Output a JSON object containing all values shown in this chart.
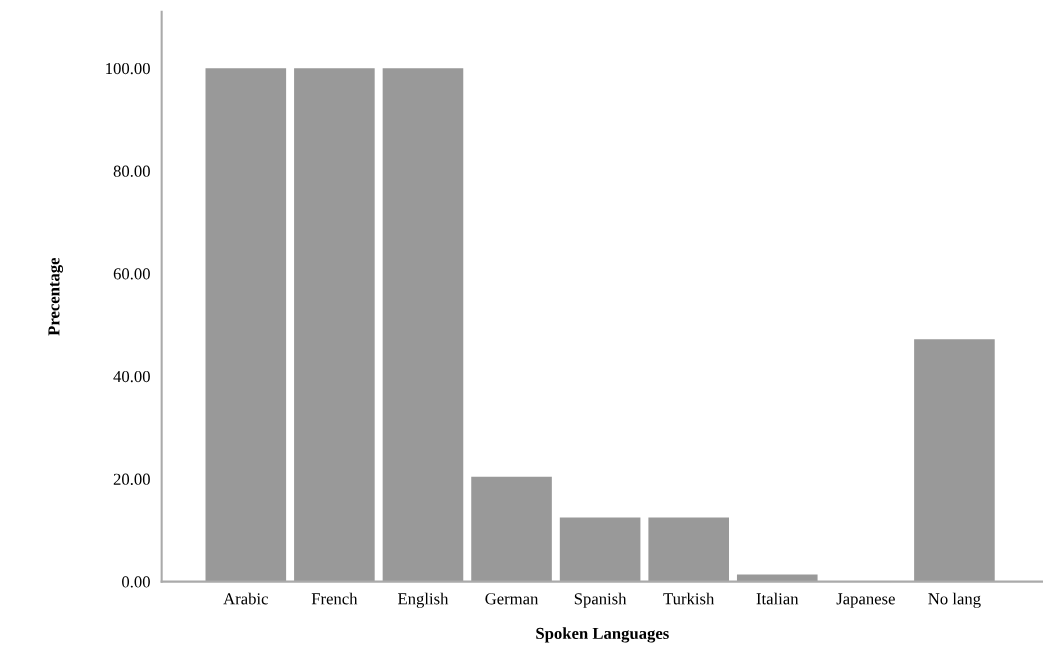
{
  "chart_data": {
    "type": "bar",
    "xlabel": "Spoken Languages",
    "ylabel": "Precentage",
    "categories": [
      "Arabic",
      "French",
      "English",
      "German",
      "Spanish",
      "Turkish",
      "Italian",
      "Japanese",
      "No lang"
    ],
    "values": [
      100,
      100,
      100,
      20.4,
      12.5,
      12.5,
      1.4,
      0,
      47.2
    ],
    "color": "#999999",
    "ylim": [
      0,
      111
    ],
    "yticks": [
      {
        "value": 0,
        "label": "0.00"
      },
      {
        "value": 20,
        "label": "20.00"
      },
      {
        "value": 40,
        "label": "40.00"
      },
      {
        "value": 60,
        "label": "60.00"
      },
      {
        "value": 80,
        "label": "80.00"
      },
      {
        "value": 100,
        "label": "100.00"
      }
    ],
    "grid": false
  }
}
